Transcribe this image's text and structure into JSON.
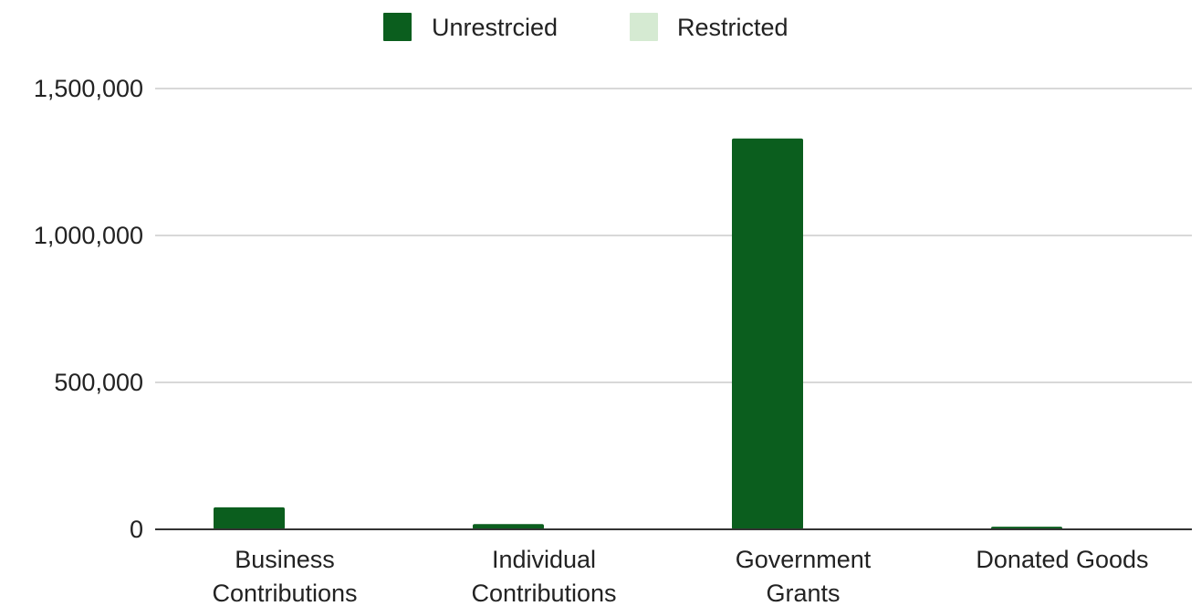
{
  "chart_data": {
    "type": "bar",
    "categories": [
      [
        "Business",
        "Contributions"
      ],
      [
        "Individual",
        "Contributions"
      ],
      [
        "Government",
        "Grants"
      ],
      [
        "Donated Goods"
      ]
    ],
    "series": [
      {
        "name": "Unrestrcied",
        "color": "#0b5e1e",
        "values": [
          75000,
          18000,
          1330000,
          9000
        ]
      },
      {
        "name": "Restricted",
        "color": "#d5ead2",
        "values": [
          0,
          0,
          0,
          0
        ]
      }
    ],
    "yticks": [
      "0",
      "500,000",
      "1,000,000",
      "1,500,000"
    ],
    "ytick_values": [
      0,
      500000,
      1000000,
      1500000
    ],
    "ylim": [
      0,
      1500000
    ],
    "grid": true,
    "legend_position": "top-center"
  }
}
